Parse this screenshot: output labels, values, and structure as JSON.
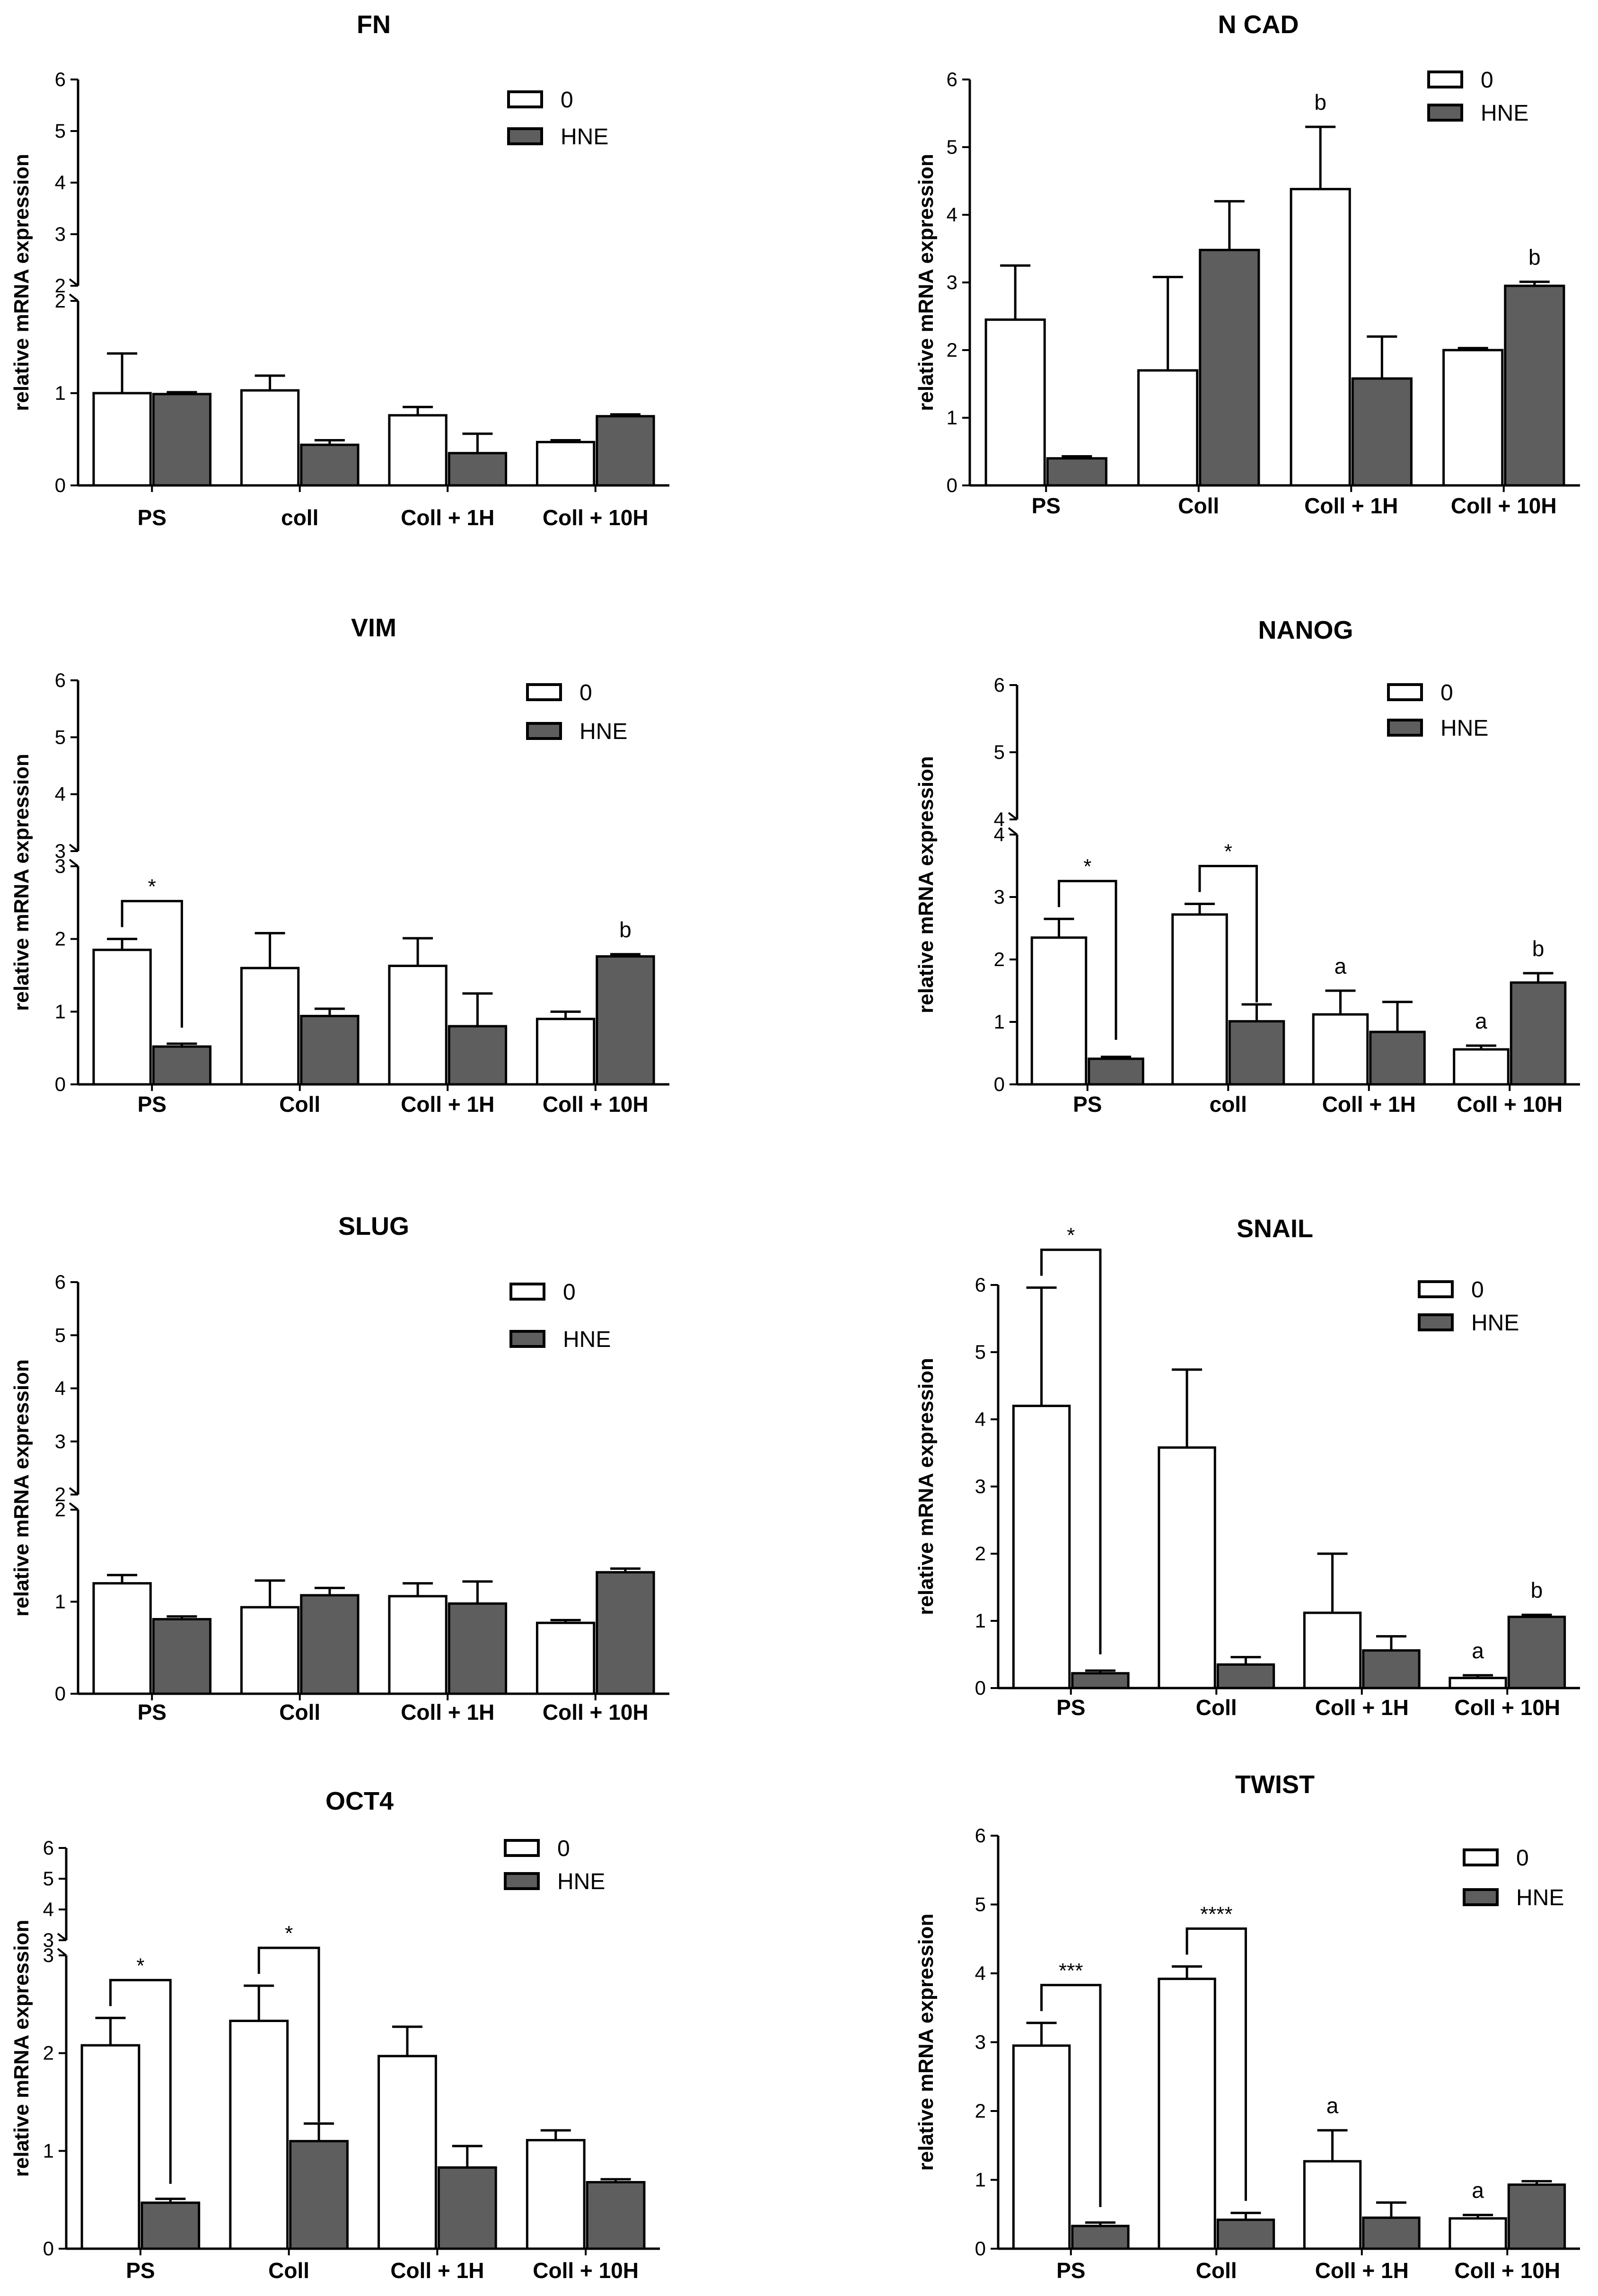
{
  "figure_title": "",
  "chart_data": [
    {
      "type": "bar",
      "title": "FN",
      "ylabel": "relative mRNA expression",
      "xlabel": "",
      "categories": [
        "PS",
        "coll",
        "Coll + 1H",
        "Coll + 10H"
      ],
      "legend": [
        "0",
        "HNE"
      ],
      "series": [
        {
          "name": "0",
          "values": [
            1.0,
            1.03,
            0.76,
            0.47
          ],
          "errors": [
            0.43,
            0.16,
            0.09,
            0.02
          ]
        },
        {
          "name": "HNE",
          "values": [
            0.99,
            0.44,
            0.35,
            0.75
          ],
          "errors": [
            0.02,
            0.05,
            0.21,
            0.02
          ]
        }
      ],
      "axis_break": {
        "lower": [
          0,
          2
        ],
        "upper": [
          2,
          6
        ]
      },
      "lower_ticks": [
        "0",
        "1",
        "2"
      ],
      "upper_ticks": [
        "2",
        "3",
        "4",
        "5",
        "6"
      ],
      "letters": [],
      "significance": []
    },
    {
      "type": "bar",
      "title": "N CAD",
      "ylabel": "relative mRNA expression",
      "xlabel": "",
      "categories": [
        "PS",
        "Coll",
        "Coll + 1H",
        "Coll + 10H"
      ],
      "legend": [
        "0",
        "HNE"
      ],
      "series": [
        {
          "name": "0",
          "values": [
            2.45,
            1.7,
            4.38,
            2.0
          ],
          "errors": [
            0.8,
            1.38,
            0.92,
            0.03
          ]
        },
        {
          "name": "HNE",
          "values": [
            0.4,
            3.48,
            1.58,
            2.95
          ],
          "errors": [
            0.03,
            0.72,
            0.62,
            0.06
          ]
        }
      ],
      "ylim": [
        0,
        6
      ],
      "ticks": [
        "0",
        "1",
        "2",
        "3",
        "4",
        "5",
        "6"
      ],
      "letters": [
        {
          "category": 2,
          "series": 0,
          "text": "b"
        },
        {
          "category": 3,
          "series": 1,
          "text": "b"
        }
      ],
      "significance": []
    },
    {
      "type": "bar",
      "title": "VIM",
      "ylabel": "relative mRNA expression",
      "xlabel": "",
      "categories": [
        "PS",
        "Coll",
        "Coll + 1H",
        "Coll + 10H"
      ],
      "legend": [
        "0",
        "HNE"
      ],
      "series": [
        {
          "name": "0",
          "values": [
            1.85,
            1.6,
            1.63,
            0.9
          ],
          "errors": [
            0.15,
            0.48,
            0.38,
            0.1
          ]
        },
        {
          "name": "HNE",
          "values": [
            0.52,
            0.94,
            0.8,
            1.76
          ],
          "errors": [
            0.04,
            0.1,
            0.45,
            0.03
          ]
        }
      ],
      "axis_break": {
        "lower": [
          0,
          3
        ],
        "upper": [
          3,
          6
        ]
      },
      "lower_ticks": [
        "0",
        "1",
        "2",
        "3"
      ],
      "upper_ticks": [
        "3",
        "4",
        "5",
        "6"
      ],
      "letters": [
        {
          "category": 3,
          "series": 1,
          "text": "b"
        }
      ],
      "significance": [
        {
          "category": 0,
          "text": "*"
        }
      ]
    },
    {
      "type": "bar",
      "title": "NANOG",
      "ylabel": "relative mRNA expression",
      "xlabel": "",
      "categories": [
        "PS",
        "coll",
        "Coll + 1H",
        "Coll + 10H"
      ],
      "legend": [
        "0",
        "HNE"
      ],
      "series": [
        {
          "name": "0",
          "values": [
            2.35,
            2.72,
            1.12,
            0.56
          ],
          "errors": [
            0.3,
            0.17,
            0.38,
            0.06
          ]
        },
        {
          "name": "HNE",
          "values": [
            0.41,
            1.01,
            0.84,
            1.63
          ],
          "errors": [
            0.03,
            0.27,
            0.48,
            0.15
          ]
        }
      ],
      "axis_break": {
        "lower": [
          0,
          4
        ],
        "upper": [
          4,
          6
        ]
      },
      "lower_ticks": [
        "0",
        "1",
        "2",
        "3",
        "4"
      ],
      "upper_ticks": [
        "4",
        "5",
        "6"
      ],
      "letters": [
        {
          "category": 2,
          "series": 0,
          "text": "a"
        },
        {
          "category": 3,
          "series": 0,
          "text": "a"
        },
        {
          "category": 3,
          "series": 1,
          "text": "b"
        }
      ],
      "significance": [
        {
          "category": 0,
          "text": "*"
        },
        {
          "category": 1,
          "text": "*"
        }
      ]
    },
    {
      "type": "bar",
      "title": "SLUG",
      "ylabel": "relative mRNA expression",
      "xlabel": "",
      "categories": [
        "PS",
        "Coll",
        "Coll + 1H",
        "Coll + 10H"
      ],
      "legend": [
        "0",
        "HNE"
      ],
      "series": [
        {
          "name": "0",
          "values": [
            1.2,
            0.94,
            1.06,
            0.77
          ],
          "errors": [
            0.09,
            0.29,
            0.14,
            0.03
          ]
        },
        {
          "name": "HNE",
          "values": [
            0.81,
            1.07,
            0.98,
            1.32
          ],
          "errors": [
            0.03,
            0.08,
            0.24,
            0.04
          ]
        }
      ],
      "axis_break": {
        "lower": [
          0,
          2
        ],
        "upper": [
          2,
          6
        ]
      },
      "lower_ticks": [
        "0",
        "1",
        "2"
      ],
      "upper_ticks": [
        "2",
        "3",
        "4",
        "5",
        "6"
      ],
      "letters": [],
      "significance": []
    },
    {
      "type": "bar",
      "title": "SNAIL",
      "ylabel": "relative mRNA expression",
      "xlabel": "",
      "categories": [
        "PS",
        "Coll",
        "Coll + 1H",
        "Coll + 10H"
      ],
      "legend": [
        "0",
        "HNE"
      ],
      "series": [
        {
          "name": "0",
          "values": [
            4.2,
            3.58,
            1.12,
            0.15
          ],
          "errors": [
            1.76,
            1.16,
            0.88,
            0.04
          ]
        },
        {
          "name": "HNE",
          "values": [
            0.22,
            0.35,
            0.56,
            1.06
          ],
          "errors": [
            0.04,
            0.11,
            0.21,
            0.03
          ]
        }
      ],
      "ylim": [
        0,
        6
      ],
      "ticks": [
        "0",
        "1",
        "2",
        "3",
        "4",
        "5",
        "6"
      ],
      "letters": [
        {
          "category": 3,
          "series": 0,
          "text": "a"
        },
        {
          "category": 3,
          "series": 1,
          "text": "b"
        }
      ],
      "significance": [
        {
          "category": 0,
          "text": "*"
        }
      ]
    },
    {
      "type": "bar",
      "title": "OCT4",
      "ylabel": "relative mRNA expression",
      "xlabel": "",
      "categories": [
        "PS",
        "Coll",
        "Coll + 1H",
        "Coll + 10H"
      ],
      "legend": [
        "0",
        "HNE"
      ],
      "series": [
        {
          "name": "0",
          "values": [
            2.08,
            2.33,
            1.97,
            1.11
          ],
          "errors": [
            0.28,
            0.36,
            0.3,
            0.1
          ]
        },
        {
          "name": "HNE",
          "values": [
            0.47,
            1.1,
            0.83,
            0.68
          ],
          "errors": [
            0.04,
            0.18,
            0.22,
            0.03
          ]
        }
      ],
      "axis_break": {
        "lower": [
          0,
          3
        ],
        "upper": [
          3,
          6
        ]
      },
      "lower_ticks": [
        "0",
        "1",
        "2",
        "3"
      ],
      "upper_ticks": [
        "3",
        "4",
        "5",
        "6"
      ],
      "letters": [],
      "significance": [
        {
          "category": 0,
          "text": "*"
        },
        {
          "category": 1,
          "text": "*"
        }
      ]
    },
    {
      "type": "bar",
      "title": "TWIST",
      "ylabel": "relative mRNA expression",
      "xlabel": "",
      "categories": [
        "PS",
        "Coll",
        "Coll + 1H",
        "Coll + 10H"
      ],
      "legend": [
        "0",
        "HNE"
      ],
      "series": [
        {
          "name": "0",
          "values": [
            2.95,
            3.92,
            1.27,
            0.44
          ],
          "errors": [
            0.33,
            0.18,
            0.45,
            0.05
          ]
        },
        {
          "name": "HNE",
          "values": [
            0.33,
            0.42,
            0.45,
            0.93
          ],
          "errors": [
            0.05,
            0.1,
            0.22,
            0.05
          ]
        }
      ],
      "ylim": [
        0,
        6
      ],
      "ticks": [
        "0",
        "1",
        "2",
        "3",
        "4",
        "5",
        "6"
      ],
      "letters": [
        {
          "category": 2,
          "series": 0,
          "text": "a"
        },
        {
          "category": 3,
          "series": 0,
          "text": "a"
        }
      ],
      "significance": [
        {
          "category": 0,
          "text": "***"
        },
        {
          "category": 1,
          "text": "****"
        }
      ]
    }
  ],
  "colors": {
    "bar_zero": "#ffffff",
    "bar_hne": "#5e5e5e",
    "axis": "#000000"
  }
}
